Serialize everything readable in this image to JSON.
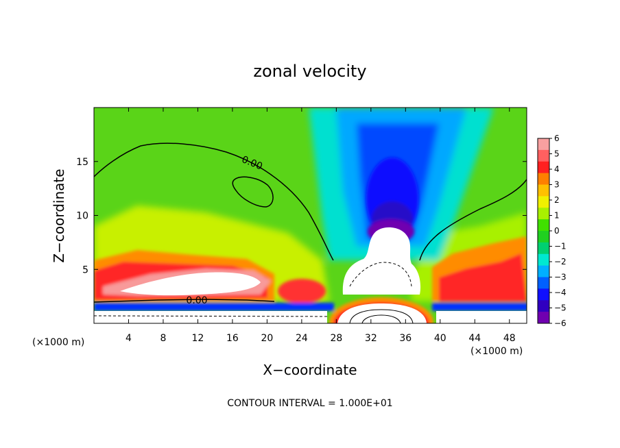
{
  "chart_data": {
    "type": "heatmap",
    "title": "zonal velocity",
    "xlabel": "X−coordinate",
    "ylabel": "Z−coordinate",
    "x_unit_left": "(×1000 m)",
    "x_unit_right": "(×1000 m)",
    "footer": "CONTOUR INTERVAL = 1.000E+01",
    "xlim": [
      0,
      50
    ],
    "ylim": [
      0,
      20
    ],
    "x_ticks": [
      4,
      8,
      12,
      16,
      20,
      24,
      28,
      32,
      36,
      40,
      44,
      48
    ],
    "x_tick_labels": [
      "4",
      "8",
      "12",
      "16",
      "20",
      "24",
      "28",
      "32",
      "36",
      "40",
      "44",
      "48"
    ],
    "y_ticks": [
      5,
      10,
      15
    ],
    "y_tick_labels": [
      "5",
      "10",
      "15"
    ],
    "colorbar": {
      "range": [
        -6,
        6
      ],
      "tick_values": [
        6,
        5,
        4,
        3,
        2,
        1,
        0,
        -1,
        -2,
        -3,
        -4,
        -5,
        -6
      ],
      "tick_labels": [
        "6",
        "5",
        "4",
        "3",
        "2",
        "1",
        "0",
        "−1",
        "−2",
        "−3",
        "−4",
        "−5",
        "−6"
      ],
      "colors": [
        "#f8a0a0",
        "#ff6060",
        "#ff2020",
        "#ff8000",
        "#ffc000",
        "#f0f000",
        "#a8f000",
        "#40e000",
        "#20d020",
        "#00d070",
        "#00e8d0",
        "#00b0ff",
        "#0060ff",
        "#1010ff",
        "#3000c0",
        "#7000b0"
      ]
    },
    "contour_labels": [
      "0.00",
      "0.00"
    ],
    "features": {
      "background_value": 0.5,
      "upper_negative_core": {
        "x": 34,
        "z": 14,
        "value": -5
      },
      "clipped_low_core": {
        "x": 34,
        "z": 7,
        "value": -7
      },
      "lower_left_positive_jet": {
        "x_range": [
          0,
          20
        ],
        "z": 3.5,
        "value": 6
      },
      "lower_right_positive_jet": {
        "x_range": [
          40,
          50
        ],
        "z": 4,
        "value": 5
      },
      "surface_positive_core": {
        "x": 34,
        "z": 1,
        "value": 7
      }
    }
  }
}
